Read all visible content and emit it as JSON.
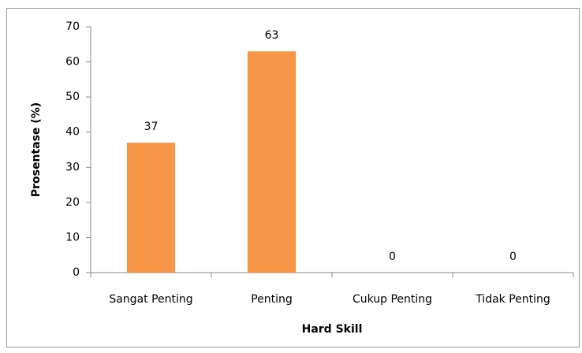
{
  "chart_data": {
    "type": "bar",
    "x_label": "Hard Skill",
    "y_label": "Prosentase (%)",
    "categories": [
      "Sangat Penting",
      "Penting",
      "Cukup Penting",
      "Tidak Penting"
    ],
    "values": [
      37,
      63,
      0,
      0
    ],
    "color": "#f79646",
    "ylim": [
      0,
      70
    ],
    "yticks": [
      0,
      10,
      20,
      30,
      40,
      50,
      60,
      70
    ],
    "grid": false,
    "data_labels": true
  }
}
